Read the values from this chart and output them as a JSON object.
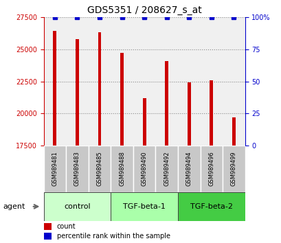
{
  "title": "GDS5351 / 208627_s_at",
  "samples": [
    "GSM989481",
    "GSM989483",
    "GSM989485",
    "GSM989488",
    "GSM989490",
    "GSM989492",
    "GSM989494",
    "GSM989496",
    "GSM989499"
  ],
  "bar_values": [
    26400,
    25800,
    26300,
    24700,
    21200,
    24100,
    22400,
    22600,
    19700
  ],
  "percentile_values": [
    100,
    100,
    100,
    100,
    100,
    100,
    100,
    100,
    100
  ],
  "bar_color": "#cc0000",
  "percentile_color": "#0000cc",
  "ylim_left": [
    17500,
    27500
  ],
  "ylim_right": [
    0,
    100
  ],
  "yticks_left": [
    17500,
    20000,
    22500,
    25000,
    27500
  ],
  "yticks_right": [
    0,
    25,
    50,
    75,
    100
  ],
  "groups": [
    {
      "label": "control",
      "indices": [
        0,
        1,
        2
      ],
      "color": "#ccffcc"
    },
    {
      "label": "TGF-beta-1",
      "indices": [
        3,
        4,
        5
      ],
      "color": "#aaffaa"
    },
    {
      "label": "TGF-beta-2",
      "indices": [
        6,
        7,
        8
      ],
      "color": "#44cc44"
    }
  ],
  "agent_label": "agent",
  "legend_count_label": "count",
  "legend_percentile_label": "percentile rank within the sample",
  "bar_width": 0.15,
  "plot_bg_color": "#f0f0f0",
  "background_color": "#ffffff",
  "title_fontsize": 10,
  "tick_label_fontsize": 7,
  "sample_label_fontsize": 6,
  "group_label_fontsize": 8
}
